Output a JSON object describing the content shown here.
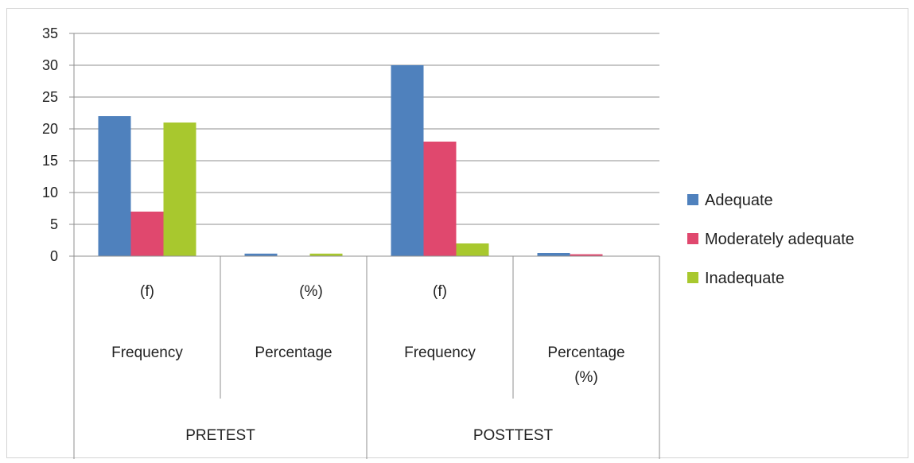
{
  "chart_data": {
    "type": "bar",
    "title": "",
    "xlabel": "",
    "ylabel": "",
    "ylim": [
      0,
      35
    ],
    "y_ticks": [
      "0",
      "5",
      "10",
      "15",
      "20",
      "25",
      "30",
      "35"
    ],
    "grid": true,
    "legend_position": "right",
    "categories": [
      {
        "lines": [
          "(f)",
          "Frequency"
        ],
        "group": "PRETEST"
      },
      {
        "lines": [
          "(%)",
          "Percentage"
        ],
        "group": "PRETEST"
      },
      {
        "lines": [
          "(f)",
          "Frequency"
        ],
        "group": "POSTTEST"
      },
      {
        "lines": [
          "Percentage",
          "(%)"
        ],
        "group": "POSTTEST"
      }
    ],
    "groups": [
      "PRETEST",
      "POSTTEST"
    ],
    "series": [
      {
        "name": "Adequate",
        "color": "#4f81bd",
        "values": [
          22,
          0.4,
          30,
          0.5
        ]
      },
      {
        "name": "Moderately adequate",
        "color": "#e0486e",
        "values": [
          7,
          0,
          18,
          0.3
        ]
      },
      {
        "name": "Inadequate",
        "color": "#a8c82e",
        "values": [
          21,
          0.4,
          2,
          0
        ]
      }
    ]
  }
}
